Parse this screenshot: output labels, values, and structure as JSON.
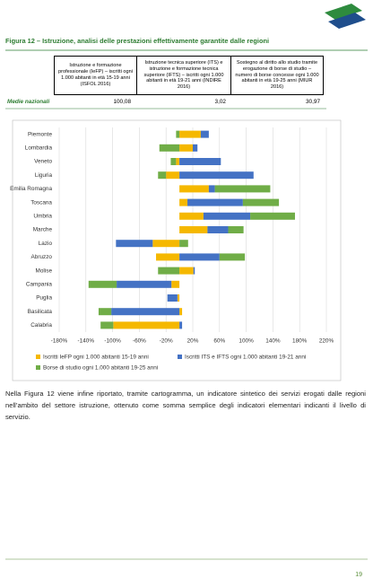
{
  "header": {
    "title": "Figura 12 – Istruzione, analisi delle prestazioni effettivamente garantite dalle regioni"
  },
  "table": {
    "columns": [
      "Istruzione e formazione professionale (IeFP) – iscritti ogni 1.000 abitanti in età 15-19 anni (ISFOL 2016)",
      "Istruzione tecnica superiore (ITS) e istruzione e formazione tecnica superiore (IFTS) – iscritti ogni 1.000 abitanti in età 19-21 anni (INDIRE 2016)",
      "Sostegno al diritto allo studio tramite erogazione di borse di studio – numero di borse concesse ogni 1.000 abitanti in età 19-25 anni (MIUR 2016)"
    ],
    "rows": [
      [
        "Medie nazionali",
        "100,08",
        "3,02",
        "30,97"
      ]
    ]
  },
  "chart_data": {
    "type": "bar",
    "orientation": "horizontal",
    "stacked": true,
    "categories": [
      "Piemonte",
      "Lombardia",
      "Veneto",
      "Liguria",
      "Emilia Romagna",
      "Toscana",
      "Umbria",
      "Marche",
      "Lazio",
      "Abruzzo",
      "Molise",
      "Campania",
      "Puglia",
      "Basilicata",
      "Calabria"
    ],
    "series": [
      {
        "name": "Iscritti IeFP ogni 1.000 abitanti 15-19 anni",
        "color": "#f5b800",
        "values": [
          32,
          20,
          -5,
          -20,
          44,
          12,
          36,
          42,
          -40,
          -35,
          21,
          -12,
          -3,
          4,
          -99
        ]
      },
      {
        "name": "Iscritti ITS e IFTS ogni 1.000 abitanti 19-21 anni",
        "color": "#4472c4",
        "values": [
          12,
          7,
          62,
          111,
          9,
          83,
          70,
          31,
          -55,
          60,
          2,
          -82,
          -15,
          -102,
          4
        ]
      },
      {
        "name": "Borse di studio ogni 1.000 abitanti 19-25 anni",
        "color": "#70ad47",
        "values": [
          -5,
          -30,
          -8,
          -12,
          83,
          54,
          67,
          23,
          13,
          38,
          -32,
          -42,
          0,
          -19,
          -19
        ]
      }
    ],
    "xlim": [
      -180,
      220
    ],
    "xticks": [
      {
        "value": -180,
        "label": "-180%"
      },
      {
        "value": -140,
        "label": "-140%"
      },
      {
        "value": -100,
        "label": "-100%"
      },
      {
        "value": -60,
        "label": "-60%"
      },
      {
        "value": -20,
        "label": "-20%"
      },
      {
        "value": 20,
        "label": "20%"
      },
      {
        "value": 60,
        "label": "60%"
      },
      {
        "value": 100,
        "label": "100%"
      },
      {
        "value": 140,
        "label": "140%"
      },
      {
        "value": 180,
        "label": "180%"
      },
      {
        "value": 220,
        "label": "220%"
      }
    ],
    "grid": true
  },
  "body": {
    "paragraph": "Nella Figura 12 viene infine riportato, tramite cartogramma, un indicatore sintetico dei servizi erogati dalle regioni nell’ambito del settore istruzione, ottenuto come somma semplice degli indicatori elementari indicanti il livello di servizio."
  },
  "footer": {
    "page_number": "19"
  }
}
